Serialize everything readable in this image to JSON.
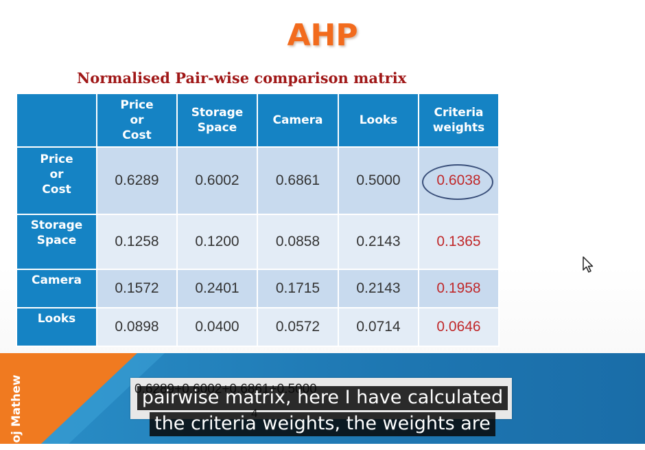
{
  "slide": {
    "title": "AHP",
    "subtitle": "Normalised Pair-wise comparison matrix"
  },
  "matrix": {
    "columns": [
      "Price\nor\nCost",
      "Storage\nSpace",
      "Camera",
      "Looks",
      "Criteria\nweights"
    ],
    "rows": [
      {
        "label": "Price\nor\nCost",
        "values": [
          "0.6289",
          "0.6002",
          "0.6861",
          "0.5000"
        ],
        "weight": "0.6038"
      },
      {
        "label": "Storage\nSpace",
        "values": [
          "0.1258",
          "0.1200",
          "0.0858",
          "0.2143"
        ],
        "weight": "0.1365"
      },
      {
        "label": "Camera",
        "values": [
          "0.1572",
          "0.2401",
          "0.1715",
          "0.2143"
        ],
        "weight": "0.1958"
      },
      {
        "label": "Looks",
        "values": [
          "0.0898",
          "0.0400",
          "0.0572",
          "0.0714"
        ],
        "weight": "0.0646"
      }
    ],
    "circled_weight_row": 0
  },
  "banner": {
    "presenter": "oj Mathew",
    "formula_numerator": "0.6289+0.6002+0.6861+0.5000",
    "formula_denominator": "4"
  },
  "captions": {
    "line1": "pairwise matrix, here I have calculated",
    "line2": "the criteria weights, the weights are"
  },
  "colors": {
    "title": "#f26b1d",
    "subtitle": "#a01818",
    "header": "#1583c4",
    "weight_text": "#c0282a",
    "banner_blue": "#1e77b2",
    "banner_orange": "#f07a20"
  },
  "icons": {
    "cursor": "mouse-pointer-icon"
  }
}
